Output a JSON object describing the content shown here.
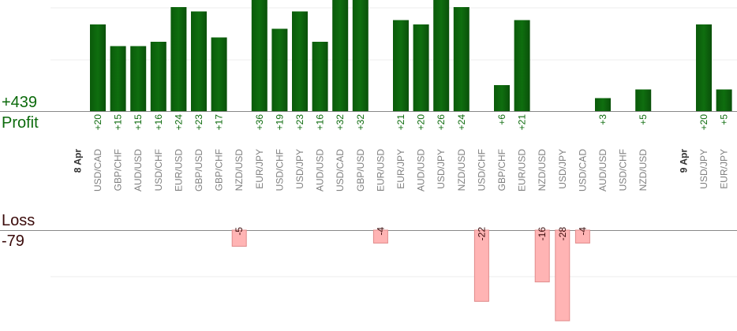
{
  "summary": {
    "total_profit": "+439",
    "profit_label": "Profit",
    "loss_label": "Loss",
    "total_loss": "-79"
  },
  "colors": {
    "profit_bar": "#0f6e0f",
    "profit_text": "#0b6a0b",
    "loss_bar_fill": "#ffb4b4",
    "loss_bar_stroke": "#e08a8a",
    "loss_text": "#3a0a0a",
    "pair_text": "#808080",
    "date_text": "#333333",
    "grid": "#eeeeee",
    "axis": "#888888"
  },
  "chart_data": {
    "type": "bar",
    "title": "",
    "grid": true,
    "profit_axis_max": 24,
    "loss_axis_max": 28,
    "date_labels": [
      {
        "label": "8 Apr",
        "slot": 0
      },
      {
        "label": "9 Apr",
        "slot": 30
      }
    ],
    "bars": [
      {
        "slot": 1,
        "pair": "USD/CAD",
        "value": 20,
        "label": "+20"
      },
      {
        "slot": 2,
        "pair": "GBP/CHF",
        "value": 15,
        "label": "+15"
      },
      {
        "slot": 3,
        "pair": "AUD/USD",
        "value": 15,
        "label": "+15"
      },
      {
        "slot": 4,
        "pair": "USD/CHF",
        "value": 16,
        "label": "+16"
      },
      {
        "slot": 5,
        "pair": "EUR/USD",
        "value": 24,
        "label": "+24"
      },
      {
        "slot": 6,
        "pair": "GBP/USD",
        "value": 23,
        "label": "+23"
      },
      {
        "slot": 7,
        "pair": "GBP/CHF",
        "value": 17,
        "label": "+17"
      },
      {
        "slot": 8,
        "pair": "NZD/USD",
        "value": -5,
        "label": "-5"
      },
      {
        "slot": 9,
        "pair": "EUR/JPY",
        "value": 36,
        "label": "+36"
      },
      {
        "slot": 10,
        "pair": "USD/CHF",
        "value": 19,
        "label": "+19"
      },
      {
        "slot": 11,
        "pair": "USD/JPY",
        "value": 23,
        "label": "+23"
      },
      {
        "slot": 12,
        "pair": "AUD/USD",
        "value": 16,
        "label": "+16"
      },
      {
        "slot": 13,
        "pair": "USD/CAD",
        "value": 32,
        "label": "+32"
      },
      {
        "slot": 14,
        "pair": "GBP/USD",
        "value": 32,
        "label": "+32"
      },
      {
        "slot": 15,
        "pair": "EUR/USD",
        "value": -4,
        "label": "-4"
      },
      {
        "slot": 16,
        "pair": "EUR/JPY",
        "value": 21,
        "label": "+21"
      },
      {
        "slot": 17,
        "pair": "AUD/USD",
        "value": 20,
        "label": "+20"
      },
      {
        "slot": 18,
        "pair": "USD/JPY",
        "value": 26,
        "label": "+26"
      },
      {
        "slot": 19,
        "pair": "NZD/USD",
        "value": 24,
        "label": "+24"
      },
      {
        "slot": 20,
        "pair": "USD/CHF",
        "value": -22,
        "label": "-22"
      },
      {
        "slot": 21,
        "pair": "GBP/CHF",
        "value": 6,
        "label": "+6"
      },
      {
        "slot": 22,
        "pair": "EUR/USD",
        "value": 21,
        "label": "+21"
      },
      {
        "slot": 23,
        "pair": "NZD/USD",
        "value": -16,
        "label": "-16"
      },
      {
        "slot": 24,
        "pair": "USD/JPY",
        "value": -28,
        "label": "-28"
      },
      {
        "slot": 25,
        "pair": "USD/CAD",
        "value": -4,
        "label": "-4"
      },
      {
        "slot": 26,
        "pair": "AUD/USD",
        "value": 3,
        "label": "+3"
      },
      {
        "slot": 27,
        "pair": "USD/CHF",
        "value": 0,
        "label": ""
      },
      {
        "slot": 28,
        "pair": "NZD/USD",
        "value": 5,
        "label": "+5"
      },
      {
        "slot": 31,
        "pair": "USD/JPY",
        "value": 20,
        "label": "+20"
      },
      {
        "slot": 32,
        "pair": "EUR/JPY",
        "value": 5,
        "label": "+5"
      }
    ]
  }
}
